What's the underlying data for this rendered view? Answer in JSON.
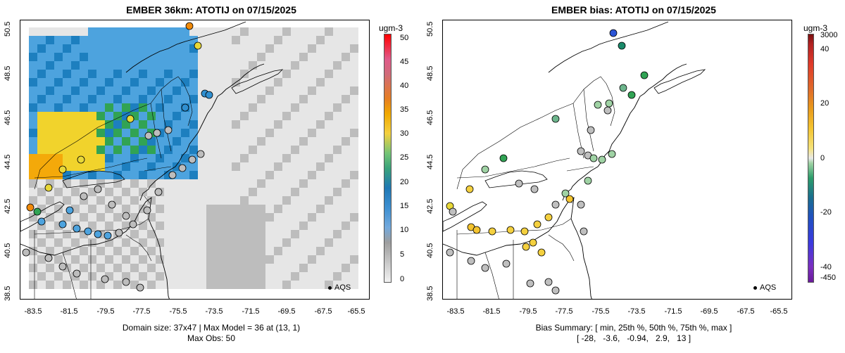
{
  "left": {
    "title": "EMBER 36km: ATOTIJ on 07/15/2025",
    "unit": "ugm-3",
    "y_ticks": [
      "50.5",
      "48.5",
      "46.5",
      "44.5",
      "42.5",
      "40.5",
      "38.5"
    ],
    "x_ticks": [
      "-83.5",
      "-81.5",
      "-79.5",
      "-77.5",
      "-75.5",
      "-73.5",
      "-71.5",
      "-69.5",
      "-67.5",
      "-65.5"
    ],
    "colorbar_ticks": [
      "50",
      "45",
      "40",
      "35",
      "30",
      "25",
      "20",
      "15",
      "10",
      "5",
      "0"
    ],
    "legend_label": "AQS",
    "footer_line1": "Domain size: 37x47 | Max Model = 36 at (13, 1)",
    "footer_line2": "Max Obs: 50",
    "colors": {
      "gray_light": "#e6e6e6",
      "gray": "#bdbdbd",
      "blue": "#4da3de",
      "blue_dark": "#1d7fbf",
      "green": "#31a354",
      "yellow": "#f1d32c",
      "orange": "#f4a90a"
    }
  },
  "right": {
    "title": "EMBER bias: ATOTIJ on 07/15/2025",
    "unit": "ugm-3",
    "y_ticks": [
      "50.5",
      "48.5",
      "46.5",
      "44.5",
      "42.5",
      "40.5",
      "38.5"
    ],
    "x_ticks": [
      "-83.5",
      "-81.5",
      "-79.5",
      "-77.5",
      "-75.5",
      "-73.5",
      "-71.5",
      "-69.5",
      "-67.5",
      "-65.5"
    ],
    "colorbar_ticks": [
      "3000",
      "40",
      "20",
      "0",
      "-20",
      "-40",
      "-450"
    ],
    "legend_label": "AQS",
    "footer_line1": "Bias Summary: [ min, 25th %, 50th %, 75th %, max ]",
    "footer_line2": "[ -28,   -3.6,   -0.94,   2.9,   13 ]"
  }
}
